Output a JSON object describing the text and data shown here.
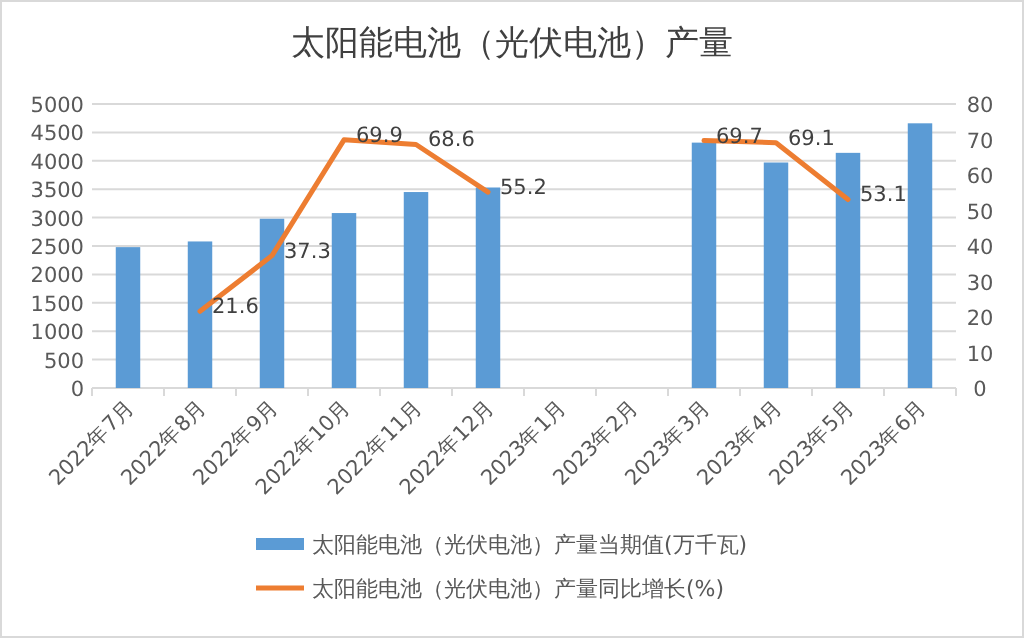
{
  "chart_data": {
    "type": "bar",
    "title": "太阳能电池（光伏电池）产量",
    "categories": [
      "2022年7月",
      "2022年8月",
      "2022年9月",
      "2022年10月",
      "2022年11月",
      "2022年12月",
      "2023年1月",
      "2023年2月",
      "2023年3月",
      "2023年4月",
      "2023年5月",
      "2023年6月"
    ],
    "series": [
      {
        "name": "太阳能电池（光伏电池）产量当期值(万千瓦)",
        "color": "#5b9bd5",
        "values": [
          2480,
          2580,
          2980,
          3080,
          3450,
          3530,
          null,
          null,
          4320,
          3970,
          4140,
          4660
        ]
      },
      {
        "name": "太阳能电池（光伏电池）产量同比增长(%)",
        "type": "line",
        "axis": "y2",
        "color": "#ed7d31",
        "values": [
          null,
          21.6,
          37.3,
          69.9,
          68.6,
          55.2,
          null,
          null,
          69.7,
          69.1,
          53.1,
          null
        ],
        "value_labels": [
          null,
          "21.6",
          "37.3",
          "69.9",
          "68.6",
          "55.2",
          null,
          null,
          "69.7",
          "69.1",
          "53.1",
          null
        ]
      }
    ],
    "ylim": [
      0,
      5000
    ],
    "yticks": [
      0,
      500,
      1000,
      1500,
      2000,
      2500,
      3000,
      3500,
      4000,
      4500,
      5000
    ],
    "y2lim": [
      0,
      80
    ],
    "y2ticks": [
      0,
      10,
      20,
      30,
      40,
      50,
      60,
      70,
      80
    ],
    "grid": "y",
    "legend": "bottom"
  }
}
